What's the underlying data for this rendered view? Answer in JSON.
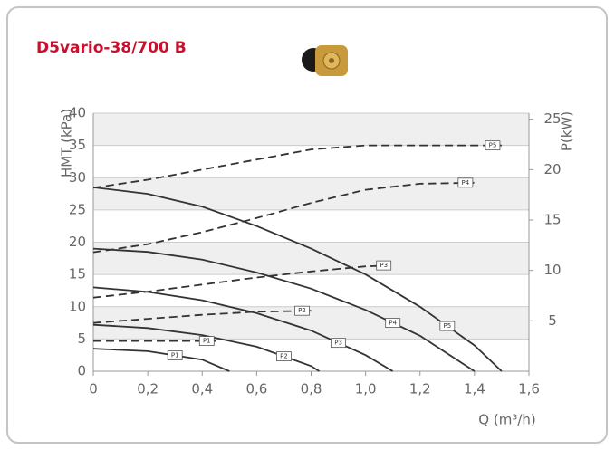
{
  "chart_data": {
    "type": "line",
    "title": "D5vario-38/700 B",
    "y_label": "HMT (kPa)",
    "y2_label": "P(kW)",
    "x_label": "Q (m³/h)",
    "xlim": [
      0,
      1.6
    ],
    "ylim": [
      0,
      40
    ],
    "y2lim": [
      0,
      25.6
    ],
    "xticks": [
      0,
      {
        "value": 0.2,
        "label": "0,2"
      },
      {
        "value": 0.4,
        "label": "0,4"
      },
      {
        "value": 0.6,
        "label": "0,6"
      },
      {
        "value": 0.8,
        "label": "0,8"
      },
      {
        "value": 1.0,
        "label": "1,0"
      },
      {
        "value": 1.2,
        "label": "1,2"
      },
      {
        "value": 1.4,
        "label": "1,4"
      },
      {
        "value": 1.6,
        "label": "1,6"
      }
    ],
    "yticks": [
      0,
      5,
      10,
      15,
      20,
      25,
      30,
      35,
      40
    ],
    "y2ticks": [
      5,
      10,
      15,
      20,
      25
    ],
    "grid": true,
    "series": [
      {
        "name": "P1",
        "color": "#333333",
        "line_style": "solid",
        "x": [
          0,
          0.2,
          0.4,
          0.5
        ],
        "values": [
          3.5,
          3.1,
          1.8,
          0
        ]
      },
      {
        "name": "P2",
        "color": "#333333",
        "line_style": "solid",
        "x": [
          0,
          0.2,
          0.4,
          0.6,
          0.8,
          0.83
        ],
        "values": [
          7.2,
          6.7,
          5.6,
          3.8,
          0.8,
          0
        ]
      },
      {
        "name": "P3",
        "color": "#333333",
        "line_style": "solid",
        "x": [
          0,
          0.2,
          0.4,
          0.6,
          0.8,
          1.0,
          1.1
        ],
        "values": [
          13,
          12.3,
          11,
          9,
          6.3,
          2.5,
          0
        ]
      },
      {
        "name": "P4",
        "color": "#333333",
        "line_style": "solid",
        "x": [
          0,
          0.2,
          0.4,
          0.6,
          0.8,
          1.0,
          1.2,
          1.4
        ],
        "values": [
          19,
          18.5,
          17.3,
          15.3,
          12.8,
          9.5,
          5.5,
          0
        ]
      },
      {
        "name": "P5",
        "color": "#333333",
        "line_style": "solid",
        "x": [
          0,
          0.2,
          0.4,
          0.6,
          0.8,
          1.0,
          1.2,
          1.4,
          1.5
        ],
        "values": [
          28.5,
          27.5,
          25.5,
          22.5,
          19,
          15,
          10,
          4,
          0
        ]
      },
      {
        "name": "P1",
        "color": "#333333",
        "line_style": "dashed",
        "axis": "y2",
        "x": [
          0,
          0.45
        ],
        "values": [
          3,
          3
        ]
      },
      {
        "name": "P2",
        "color": "#333333",
        "line_style": "dashed",
        "axis": "y2",
        "x": [
          0,
          0.2,
          0.4,
          0.6,
          0.8
        ],
        "values": [
          4.8,
          5.2,
          5.6,
          5.9,
          6
        ]
      },
      {
        "name": "P3",
        "color": "#333333",
        "line_style": "dashed",
        "axis": "y2",
        "x": [
          0,
          0.2,
          0.4,
          0.6,
          0.8,
          1.0,
          1.1
        ],
        "values": [
          7.3,
          7.9,
          8.6,
          9.3,
          9.9,
          10.4,
          10.5
        ]
      },
      {
        "name": "P4",
        "color": "#333333",
        "line_style": "dashed",
        "axis": "y2",
        "x": [
          0,
          0.2,
          0.4,
          0.6,
          0.8,
          1.0,
          1.2,
          1.4
        ],
        "values": [
          11.8,
          12.6,
          13.8,
          15.2,
          16.7,
          18,
          18.6,
          18.7
        ]
      },
      {
        "name": "P5",
        "color": "#333333",
        "line_style": "dashed",
        "axis": "y2",
        "x": [
          0,
          0.2,
          0.4,
          0.6,
          0.8,
          1.0,
          1.2,
          1.5
        ],
        "values": [
          18.2,
          19,
          20,
          21,
          22,
          22.4,
          22.4,
          22.4
        ]
      }
    ]
  }
}
